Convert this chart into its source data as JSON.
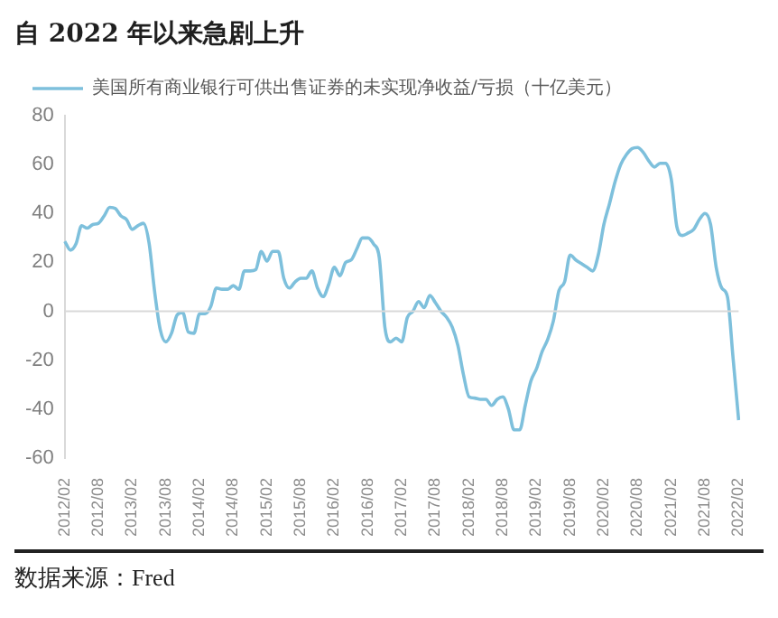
{
  "chart_data": {
    "type": "line",
    "title": "自 2022 年以来急剧上升",
    "categories": [
      "2012/02",
      null,
      null,
      null,
      null,
      null,
      "2012/08",
      null,
      null,
      null,
      null,
      null,
      "2013/02",
      null,
      null,
      null,
      null,
      null,
      "2013/08",
      null,
      null,
      null,
      null,
      null,
      "2014/02",
      null,
      null,
      null,
      null,
      null,
      "2014/08",
      null,
      null,
      null,
      null,
      null,
      "2015/02",
      null,
      null,
      null,
      null,
      null,
      "2015/08",
      null,
      null,
      null,
      null,
      null,
      "2016/02",
      null,
      null,
      null,
      null,
      null,
      "2016/08",
      null,
      null,
      null,
      null,
      null,
      "2017/02",
      null,
      null,
      null,
      null,
      null,
      "2017/08",
      null,
      null,
      null,
      null,
      null,
      "2018/02",
      null,
      null,
      null,
      null,
      null,
      "2018/08",
      null,
      null,
      null,
      null,
      null,
      "2019/02",
      null,
      null,
      null,
      null,
      null,
      "2019/08",
      null,
      null,
      null,
      null,
      null,
      "2020/02",
      null,
      null,
      null,
      null,
      null,
      "2020/08",
      null,
      null,
      null,
      null,
      null,
      "2021/02",
      null,
      null,
      null,
      null,
      null,
      "2021/08",
      null,
      null,
      null,
      null,
      null,
      "2022/02"
    ],
    "series": [
      {
        "name": "美国所有商业银行可供出售证券的未实现净收益/亏损（十亿美元）",
        "color": "#7ec0dc",
        "values": [
          28.6,
          25,
          27.6,
          35,
          34,
          35.5,
          36,
          39,
          42.5,
          42,
          39,
          37.5,
          33.5,
          35,
          36,
          28,
          8,
          -7.5,
          -12.5,
          -9,
          -1.5,
          -0.5,
          -8.5,
          -9,
          -1,
          -1,
          2,
          9.5,
          9,
          9,
          10.5,
          9,
          16.5,
          16.5,
          17,
          24.5,
          20.5,
          24.5,
          24.5,
          13.5,
          9.5,
          12,
          13.5,
          13.5,
          16.5,
          9.5,
          6,
          11,
          18,
          14.5,
          20,
          21,
          25.5,
          30,
          30,
          27.5,
          22,
          -6.5,
          -12.5,
          -11,
          -12.5,
          -2.5,
          0,
          4,
          1.5,
          6.5,
          3.5,
          0,
          -2.5,
          -6.5,
          -14,
          -26,
          -35,
          -35.5,
          -36,
          -36,
          -38.5,
          -36,
          -35,
          -40,
          -48.5,
          -48.5,
          -38.5,
          -28.5,
          -23.5,
          -16.5,
          -11.5,
          -4,
          8.5,
          12,
          23,
          21,
          19.5,
          18,
          16.5,
          23,
          35.5,
          44,
          53,
          60,
          64,
          66.5,
          67,
          65,
          61.5,
          59,
          60.5,
          60.5,
          54,
          34.5,
          31,
          32,
          33.5,
          37.5,
          40,
          35.5,
          18,
          9.5,
          6,
          -19,
          -44.5
        ]
      }
    ],
    "ylim": [
      -60,
      80
    ],
    "yticks": [
      -60,
      -40,
      -20,
      0,
      20,
      40,
      60,
      80
    ],
    "grid": false,
    "legend": "top left",
    "marker": "none",
    "line_style": "solid",
    "ref_lines": [
      {
        "axis": "y",
        "value": 0,
        "color": "#d9d9d9"
      }
    ],
    "annotations": [
      "数据来源：Fred"
    ]
  }
}
